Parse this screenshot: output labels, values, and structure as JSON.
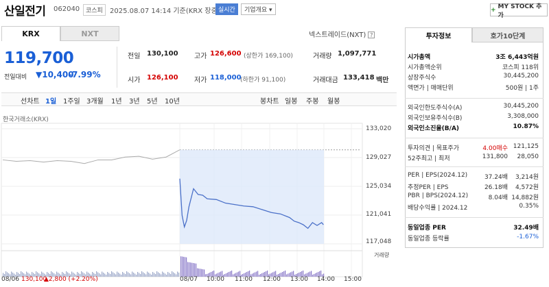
{
  "header": {
    "name": "산일전기",
    "code": "062040",
    "market": "코스피",
    "datetime": "2025.08.07 14:14 기준(KRX 장중)",
    "realtime": "실시간",
    "overview": "기업개요 ▾",
    "my_stock": "MY STOCK 추가",
    "plus": "+"
  },
  "tabs": {
    "krx": "KRX",
    "nxt": "NXT",
    "nxt_link": "넥스트레이드(NXT)",
    "q": "?"
  },
  "price": {
    "current": "119,700",
    "change_label": "전일대비",
    "change": "▼10,400",
    "change_pct": "-7.99%"
  },
  "stats": {
    "prev_label": "전일",
    "prev": "130,100",
    "high_label": "고가",
    "high": "126,600",
    "upper_limit": "(상한가 169,100)",
    "volume_label": "거래량",
    "volume": "1,097,771",
    "open_label": "시가",
    "open": "126,100",
    "low_label": "저가",
    "low": "118,000",
    "lower_limit": "(하한가 91,100)",
    "amount_label": "거래대금",
    "amount": "133,418",
    "amount_unit": "백만"
  },
  "periods": {
    "chart_label": "선차트",
    "items": [
      "1일",
      "1주일",
      "3개월",
      "1년",
      "3년",
      "5년",
      "10년"
    ],
    "candle_label": "봉차트",
    "candles": [
      "일봉",
      "주봉",
      "월봉"
    ]
  },
  "chart": {
    "source": "한국거래소(KRX)",
    "y_ticks": [
      "133,020",
      "129,027",
      "125,034",
      "121,041",
      "117,048"
    ],
    "x_ticks": [
      "08/06",
      "08/07",
      "10:00",
      "11:00",
      "12:00",
      "13:00",
      "14:00",
      "15:00"
    ],
    "volume_label": "거래량",
    "prev_close_text": "130,100",
    "prev_change_text": "▲2,800 (+2.20%)"
  },
  "chart_data": {
    "type": "line",
    "title": "",
    "ylim": [
      117048,
      133020
    ],
    "series": [
      {
        "x": [
          "08/06 09:00",
          "08/06 09:30",
          "08/06 10:00",
          "08/06 10:30",
          "08/06 11:00",
          "08/06 11:30",
          "08/06 12:00",
          "08/06 12:30",
          "08/06 13:00",
          "08/06 13:30",
          "08/06 14:00",
          "08/06 14:30",
          "08/06 15:00",
          "08/06 15:30"
        ],
        "values": [
          128700,
          128500,
          128600,
          128400,
          128600,
          128500,
          128200,
          128700,
          128700,
          129100,
          129200,
          128800,
          129100,
          130100
        ]
      },
      {
        "x": [
          "09:00",
          "09:05",
          "09:10",
          "09:15",
          "09:20",
          "09:30",
          "09:40",
          "09:50",
          "10:00",
          "10:20",
          "10:40",
          "11:00",
          "11:20",
          "11:40",
          "12:00",
          "12:20",
          "12:40",
          "13:00",
          "13:10",
          "13:20",
          "13:30",
          "13:40",
          "13:50",
          "14:00",
          "14:10",
          "14:14"
        ],
        "values": [
          126100,
          121000,
          119400,
          120300,
          122200,
          124700,
          123900,
          123800,
          123300,
          123200,
          122700,
          122500,
          122300,
          122200,
          121800,
          121400,
          121200,
          120700,
          120200,
          120000,
          119700,
          119200,
          120000,
          119600,
          120000,
          119700
        ]
      }
    ]
  },
  "invest": {
    "tab1": "투자정보",
    "tab2": "호가10단계",
    "rows": [
      {
        "label": "시가총액",
        "value": "3조 6,443억원",
        "bold": true
      },
      {
        "label": "시가총액순위",
        "value": "코스피 118위"
      },
      {
        "label": "상장주식수",
        "value": "30,445,200"
      },
      {
        "label": "액면가 | 매매단위",
        "value": "500원 | 1주"
      }
    ],
    "rows2": [
      {
        "label": "외국인한도주식수(A)",
        "value": "30,445,200"
      },
      {
        "label": "외국인보유주식수(B)",
        "value": "3,308,000"
      },
      {
        "label": "외국인소진율(B/A)",
        "value": "10.87%",
        "bold": true
      }
    ],
    "rows3": [
      {
        "label": "투자의견 | 목표주가",
        "v1": "4.00매수",
        "v2": "121,125"
      },
      {
        "label": "52주최고 | 최저",
        "v1": "131,800",
        "v2": "28,050"
      }
    ],
    "rows4": [
      {
        "label": "PER | EPS(2024.12)",
        "v1": "37.24배",
        "v2": "3,214원"
      },
      {
        "label": "추정PER | EPS",
        "v1": "26.18배",
        "v2": "4,572원"
      },
      {
        "label": "PBR | BPS(2024.12)",
        "v1": "8.04배",
        "v2": "14,882원"
      },
      {
        "label": "배당수익률 | 2024.12",
        "v1": "",
        "v2": "0.35%"
      }
    ],
    "rows5": [
      {
        "label": "동일업종 PER",
        "value": "32.49배",
        "bold": true
      },
      {
        "label": "동일업종 등락률",
        "value": "-1.67%"
      }
    ]
  },
  "colors": {
    "down": "#1a5fd6",
    "up": "#d40000",
    "line": "#4a70c8",
    "area": "#dde8fa"
  }
}
